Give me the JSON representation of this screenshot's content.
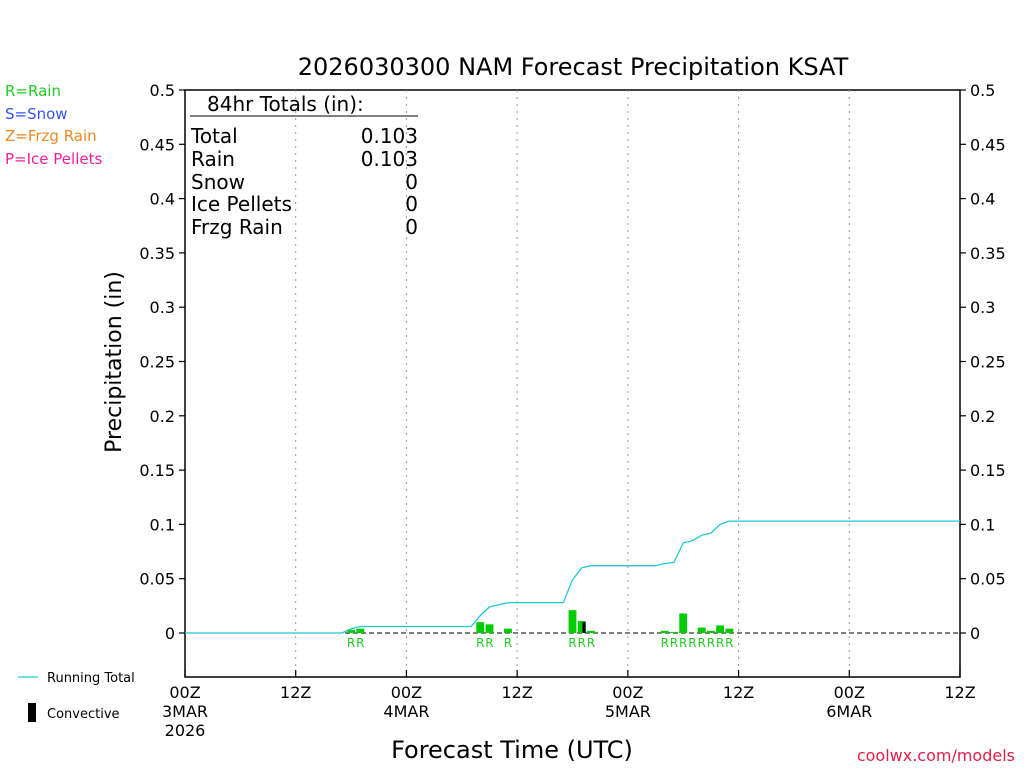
{
  "chart_data": {
    "type": "bar",
    "title": "2026030300 NAM Forecast Precipitation KSAT",
    "xlabel": "Forecast Time (UTC)",
    "ylabel": "Precipitation (in)",
    "ylim": [
      0,
      0.5
    ],
    "xlim_hours": [
      0,
      84
    ],
    "y_ticks": [
      "0",
      "0.05",
      "0.1",
      "0.15",
      "0.2",
      "0.25",
      "0.3",
      "0.35",
      "0.4",
      "0.45",
      "0.5"
    ],
    "y_tick_values": [
      0,
      0.05,
      0.1,
      0.15,
      0.2,
      0.25,
      0.3,
      0.35,
      0.4,
      0.45,
      0.5
    ],
    "x_ticks": [
      {
        "hour": 0,
        "label": "00Z",
        "date": "3MAR",
        "year": "2026"
      },
      {
        "hour": 12,
        "label": "12Z",
        "date": "",
        "year": ""
      },
      {
        "hour": 24,
        "label": "00Z",
        "date": "4MAR",
        "year": ""
      },
      {
        "hour": 36,
        "label": "12Z",
        "date": "",
        "year": ""
      },
      {
        "hour": 48,
        "label": "00Z",
        "date": "5MAR",
        "year": ""
      },
      {
        "hour": 60,
        "label": "12Z",
        "date": "",
        "year": ""
      },
      {
        "hour": 72,
        "label": "00Z",
        "date": "6MAR",
        "year": ""
      },
      {
        "hour": 84,
        "label": "12Z",
        "date": "",
        "year": ""
      }
    ],
    "rain_bars": [
      {
        "hour": 18,
        "value": 0.003
      },
      {
        "hour": 19,
        "value": 0.004
      },
      {
        "hour": 32,
        "value": 0.01
      },
      {
        "hour": 33,
        "value": 0.008
      },
      {
        "hour": 35,
        "value": 0.004
      },
      {
        "hour": 42,
        "value": 0.021
      },
      {
        "hour": 43,
        "value": 0.011
      },
      {
        "hour": 44,
        "value": 0.002
      },
      {
        "hour": 52,
        "value": 0.002
      },
      {
        "hour": 53,
        "value": 0.001
      },
      {
        "hour": 54,
        "value": 0.018
      },
      {
        "hour": 56,
        "value": 0.005
      },
      {
        "hour": 57,
        "value": 0.002
      },
      {
        "hour": 58,
        "value": 0.007
      },
      {
        "hour": 59,
        "value": 0.004
      }
    ],
    "convective_bars": [
      {
        "hour": 43,
        "value": 0.01
      }
    ],
    "running_total": {
      "hours": [
        0,
        17,
        18,
        19,
        31,
        32,
        33,
        34,
        35,
        41,
        42,
        43,
        44,
        51,
        52,
        53,
        54,
        55,
        56,
        57,
        58,
        59,
        60,
        84
      ],
      "values": [
        0,
        0,
        0.004,
        0.006,
        0.006,
        0.016,
        0.024,
        0.026,
        0.028,
        0.028,
        0.049,
        0.06,
        0.062,
        0.062,
        0.064,
        0.065,
        0.083,
        0.085,
        0.09,
        0.092,
        0.1,
        0.103,
        0.103,
        0.103
      ]
    },
    "type_labels": [
      {
        "hour": 18,
        "text": "R"
      },
      {
        "hour": 19,
        "text": "R"
      },
      {
        "hour": 32,
        "text": "R"
      },
      {
        "hour": 33,
        "text": "R"
      },
      {
        "hour": 35,
        "text": "R"
      },
      {
        "hour": 42,
        "text": "R"
      },
      {
        "hour": 43,
        "text": "R"
      },
      {
        "hour": 44,
        "text": "R"
      },
      {
        "hour": 52,
        "text": "R"
      },
      {
        "hour": 53,
        "text": "R"
      },
      {
        "hour": 54,
        "text": "R"
      },
      {
        "hour": 55,
        "text": "R"
      },
      {
        "hour": 56,
        "text": "R"
      },
      {
        "hour": 57,
        "text": "R"
      },
      {
        "hour": 58,
        "text": "R"
      },
      {
        "hour": 59,
        "text": "R"
      }
    ],
    "totals_box": {
      "heading": "84hr Totals (in):",
      "rows": [
        {
          "label": "Total",
          "value": "0.103"
        },
        {
          "label": "Rain",
          "value": "0.103"
        },
        {
          "label": "Snow",
          "value": "0"
        },
        {
          "label": "Ice Pellets",
          "value": "0"
        },
        {
          "label": "Frzg Rain",
          "value": "0"
        }
      ]
    }
  },
  "legend": [
    {
      "text": "R=Rain",
      "color": "#22cc22"
    },
    {
      "text": "S=Snow",
      "color": "#3355ee"
    },
    {
      "text": "Z=Frzg Rain",
      "color": "#ee8822"
    },
    {
      "text": "P=Ice Pellets",
      "color": "#ee2299"
    }
  ],
  "side_legend": {
    "running_total_label": "Running Total",
    "convective_label": "Convective"
  },
  "colors": {
    "rain": "#00cc00",
    "convective": "#000000",
    "running_total": "#1ec8d2",
    "grid": "#999999",
    "credit": "#e0204a"
  },
  "credit": "coolwx.com/models"
}
